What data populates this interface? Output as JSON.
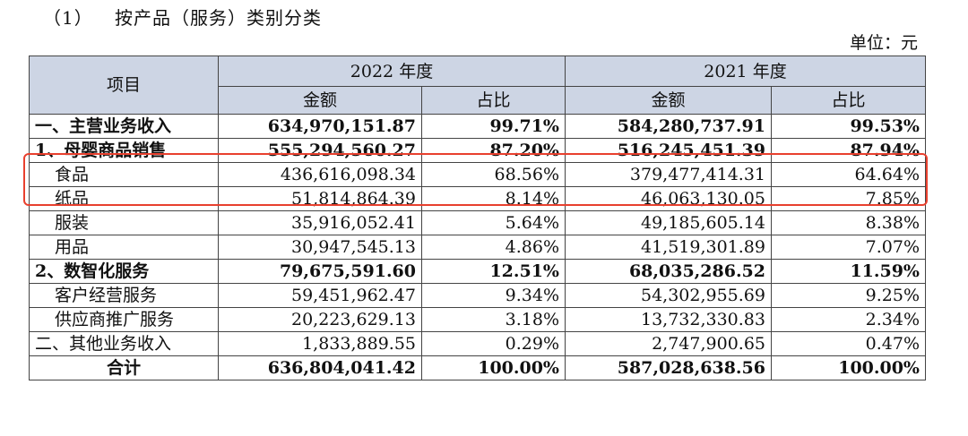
{
  "heading": {
    "number": "（1）",
    "title": "按产品（服务）类别分类"
  },
  "unit": "单位：元",
  "table": {
    "header_item": "项目",
    "year_2022": "2022 年度",
    "year_2021": "2021 年度",
    "amount": "金额",
    "ratio": "占比",
    "rows": [
      {
        "label": "一、主营业务收入",
        "a2022": "634,970,151.87",
        "r2022": "99.71%",
        "a2021": "584,280,737.91",
        "r2021": "99.53%",
        "bold": true,
        "indent": false
      },
      {
        "label": "1、母婴商品销售",
        "a2022": "555,294,560.27",
        "r2022": "87.20%",
        "a2021": "516,245,451.39",
        "r2021": "87.94%",
        "bold": true,
        "indent": false
      },
      {
        "label": "食品",
        "a2022": "436,616,098.34",
        "r2022": "68.56%",
        "a2021": "379,477,414.31",
        "r2021": "64.64%",
        "bold": false,
        "indent": true
      },
      {
        "label": "纸品",
        "a2022": "51,814,864.39",
        "r2022": "8.14%",
        "a2021": "46,063,130.05",
        "r2021": "7.85%",
        "bold": false,
        "indent": true
      },
      {
        "label": "服装",
        "a2022": "35,916,052.41",
        "r2022": "5.64%",
        "a2021": "49,185,605.14",
        "r2021": "8.38%",
        "bold": false,
        "indent": true
      },
      {
        "label": "用品",
        "a2022": "30,947,545.13",
        "r2022": "4.86%",
        "a2021": "41,519,301.89",
        "r2021": "7.07%",
        "bold": false,
        "indent": true
      },
      {
        "label": "2、数智化服务",
        "a2022": "79,675,591.60",
        "r2022": "12.51%",
        "a2021": "68,035,286.52",
        "r2021": "11.59%",
        "bold": true,
        "indent": false
      },
      {
        "label": "客户经营服务",
        "a2022": "59,451,962.47",
        "r2022": "9.34%",
        "a2021": "54,302,955.69",
        "r2021": "9.25%",
        "bold": false,
        "indent": true
      },
      {
        "label": "供应商推广服务",
        "a2022": "20,223,629.13",
        "r2022": "3.18%",
        "a2021": "13,732,330.83",
        "r2021": "2.34%",
        "bold": false,
        "indent": true
      },
      {
        "label": "二、其他业务收入",
        "a2022": "1,833,889.55",
        "r2022": "0.29%",
        "a2021": "2,747,900.65",
        "r2021": "0.47%",
        "bold": false,
        "indent": false
      },
      {
        "label": "合计",
        "a2022": "636,804,041.42",
        "r2022": "100.00%",
        "a2021": "587,028,638.56",
        "r2021": "100.00%",
        "bold": true,
        "indent": false,
        "center": true
      }
    ]
  },
  "highlight_color": "#e8402e",
  "header_bg": "#cdd5e4"
}
